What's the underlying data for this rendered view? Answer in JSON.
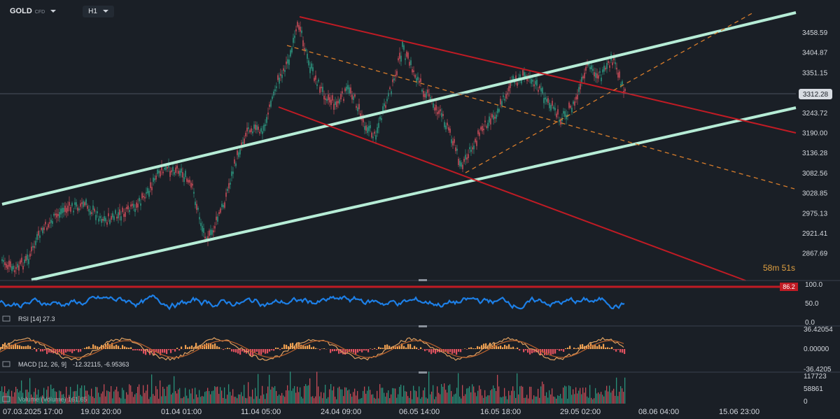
{
  "header": {
    "symbol": "GOLD",
    "symbol_type": "CFD",
    "timeframe": "H1"
  },
  "price_axis": {
    "labels": [
      "3458.59",
      "3404.87",
      "3351.15",
      "3297.44",
      "3243.72",
      "3190.00",
      "3136.28",
      "3082.56",
      "3028.85",
      "2975.13",
      "2921.41",
      "2867.69"
    ],
    "current_price": "3312.28",
    "countdown": "58m 51s"
  },
  "rsi": {
    "title": "RSI [14] 27.3",
    "axis_labels": [
      "100.0",
      "50.0",
      "0.0"
    ],
    "marker_value": "86.2"
  },
  "macd": {
    "title_name": "MACD [12, 26, 9]",
    "title_values": "-12.32115, -6.95363",
    "axis_labels": [
      "36.42054",
      "0.00000",
      "-36.4205"
    ]
  },
  "volume": {
    "title": "Volume (Volume) 161.65",
    "axis_labels": [
      "117723",
      "58861",
      "0"
    ]
  },
  "time_axis": {
    "labels": [
      "07.03.2025 17:00",
      "19.03 20:00",
      "01.04 01:00",
      "11.04 05:00",
      "24.04 09:00",
      "06.05 14:00",
      "16.05 18:00",
      "29.05 02:00",
      "08.06 04:00",
      "15.06 23:00"
    ]
  },
  "colors": {
    "background": "#1a1f26",
    "bull": "#2ea58a",
    "bear": "#e0525f",
    "channel_green": "#b6ecd6",
    "channel_red": "#c01b24",
    "dash_orange": "#d87d2b",
    "rsi_line": "#1d7fe6",
    "macd_line1": "#e0a060",
    "macd_line2": "#b8602c"
  }
}
